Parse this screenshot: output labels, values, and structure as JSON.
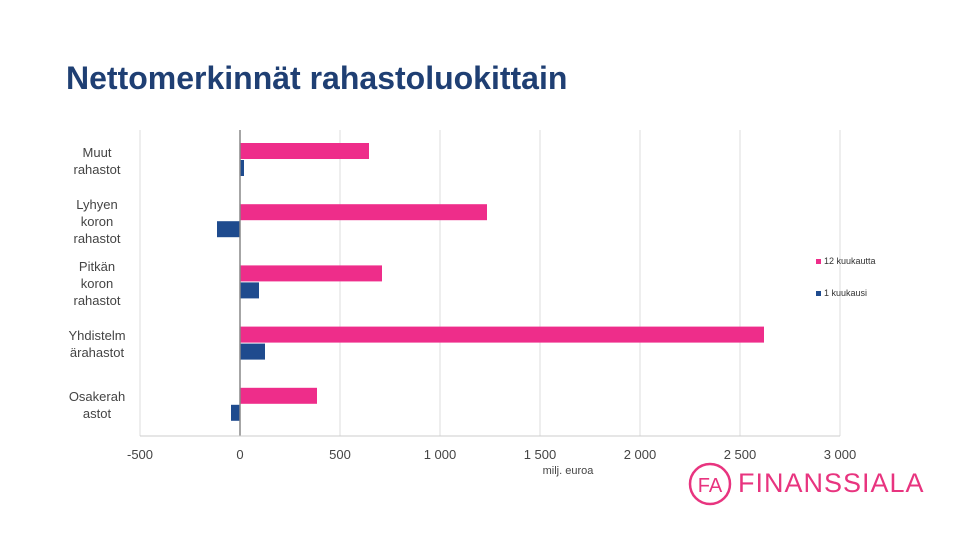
{
  "title": "Nettomerkinnät rahastoluokittain",
  "colors": {
    "series_12": "#ee2d8a",
    "series_1": "#1f4b8e",
    "title": "#1f3f73",
    "brand": "#e8347f"
  },
  "logo": {
    "text": "FINANSSIALA",
    "mark": "FA"
  },
  "chart_data": {
    "type": "bar",
    "orientation": "horizontal",
    "categories": [
      [
        "Muut",
        "rahastot"
      ],
      [
        "Lyhyen",
        "koron",
        "rahastot"
      ],
      [
        "Pitkän",
        "koron",
        "rahastot"
      ],
      [
        "Yhdistelm",
        "ärahastot"
      ],
      [
        "Osakerah",
        "astot"
      ]
    ],
    "series": [
      {
        "name": "12 kuukautta",
        "color": "#ee2d8a",
        "values": [
          645,
          1235,
          710,
          2620,
          385
        ]
      },
      {
        "name": "1 kuukausi",
        "color": "#1f4b8e",
        "values": [
          20,
          -115,
          95,
          125,
          -45
        ]
      }
    ],
    "xlim": [
      -500,
      3000
    ],
    "xticks": [
      -500,
      0,
      500,
      1000,
      1500,
      2000,
      2500,
      3000
    ],
    "xtick_labels": [
      "-500",
      "0",
      "500",
      "1 000",
      "1 500",
      "2 000",
      "2 500",
      "3 000"
    ],
    "xlabel": "milj. euroa",
    "grid": true,
    "legend_position": "right"
  }
}
